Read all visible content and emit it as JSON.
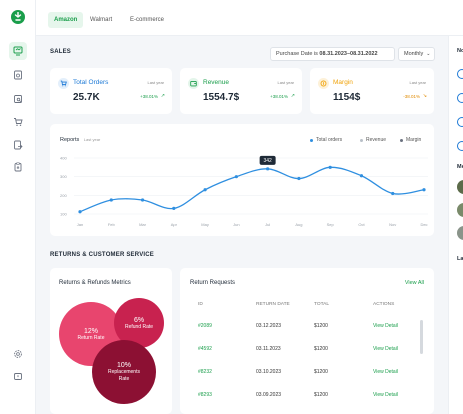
{
  "brand_color": "#1a9e4b",
  "tabs": [
    {
      "label": "Amazon",
      "active": true
    },
    {
      "label": "Walmart",
      "active": false
    },
    {
      "label": "E-commerce",
      "active": false
    }
  ],
  "sidebar": {
    "icons": [
      "dashboard-icon",
      "orders-icon",
      "inventory-icon",
      "cart-icon",
      "shipping-icon",
      "clipboard-icon",
      "settings-icon",
      "chat-icon"
    ]
  },
  "sales": {
    "title": "SALES",
    "date_filter": "Purchase Date is",
    "date_range": "08.31.2023–08.31.2022",
    "period": "Monthly"
  },
  "kpis": [
    {
      "label": "Total Orders",
      "value": "25.7K",
      "last": "Last year",
      "change": "+38.01%",
      "color": "#1e7ad6",
      "change_color": "#1a9e4b",
      "icon": "cart-icon"
    },
    {
      "label": "Revenue",
      "value": "1554.7$",
      "last": "Last year",
      "change": "+38.01%",
      "color": "#1a9e4b",
      "change_color": "#1a9e4b",
      "icon": "wallet-icon"
    },
    {
      "label": "Margin",
      "value": "1154$",
      "last": "Last year",
      "change": "-38.01%",
      "color": "#f0a30a",
      "change_color": "#e08a00",
      "icon": "coin-icon"
    }
  ],
  "reports": {
    "title": "Reports",
    "subtitle": "Last year",
    "legend": [
      {
        "label": "Total orders",
        "color": "#2f8fe0"
      },
      {
        "label": "Revenue",
        "color": "#b9c0c8"
      },
      {
        "label": "Margin",
        "color": "#6b7280"
      }
    ],
    "tooltip": "342"
  },
  "chart_data": {
    "type": "line",
    "title": "Reports",
    "xlabel": "",
    "ylabel": "",
    "categories": [
      "Jan",
      "Feb",
      "Mar",
      "Apr",
      "May",
      "Jun",
      "Jul",
      "Aug",
      "Sep",
      "Oct",
      "Nov",
      "Dec"
    ],
    "yticks": [
      100,
      200,
      300,
      400
    ],
    "ylim": [
      100,
      400
    ],
    "series": [
      {
        "name": "Total orders",
        "values": [
          112,
          175,
          175,
          130,
          230,
          300,
          342,
          290,
          350,
          305,
          210,
          230
        ]
      }
    ],
    "grid": true
  },
  "returns": {
    "title": "RETURNS & CUSTOMER SERVICE",
    "metrics_title": "Returns & Refunds Metrics",
    "bubbles": [
      {
        "pct": "12%",
        "label": "Return Rate",
        "color": "#e8456e"
      },
      {
        "pct": "6%",
        "label": "Refund Rate",
        "color": "#c8224f"
      },
      {
        "pct": "10%",
        "label": "Replacements Rate",
        "color": "#8c1033"
      }
    ],
    "requests_title": "Return Requests",
    "view_all": "View All",
    "columns": [
      "ID",
      "RETURN DATE",
      "TOTAL",
      "ACTIONS"
    ],
    "rows": [
      {
        "id": "#2089",
        "date": "03.12.2023",
        "total": "$1200",
        "action": "View Detail"
      },
      {
        "id": "#4592",
        "date": "03.11.2023",
        "total": "$1200",
        "action": "View Detail"
      },
      {
        "id": "#8232",
        "date": "03.10.2023",
        "total": "$1200",
        "action": "View Detail"
      },
      {
        "id": "#8293",
        "date": "03.09.2023",
        "total": "$1200",
        "action": "View Detail"
      }
    ]
  },
  "right_panel": {
    "labels": [
      "No",
      "Me",
      "La"
    ]
  }
}
